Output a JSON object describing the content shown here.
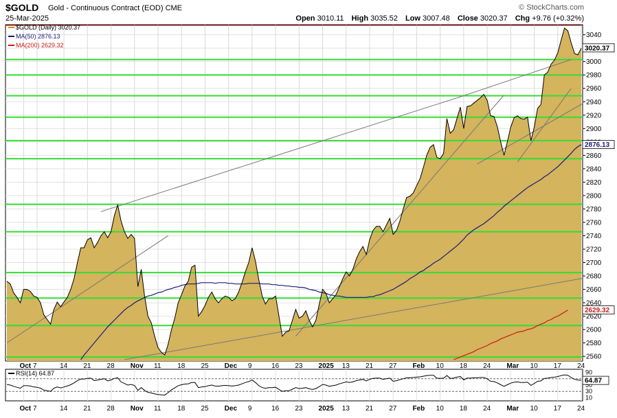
{
  "header": {
    "symbol": "$GOLD",
    "description": "Gold - Continuous Contract (EOD)",
    "exchange": "CME",
    "date": "25-Mar-2025",
    "brand": "© StockCharts.com",
    "open_label": "Open",
    "open": "3010.11",
    "high_label": "High",
    "high": "3035.52",
    "low_label": "Low",
    "low": "3007.48",
    "close_label": "Close",
    "close": "3020.37",
    "chg_label": "Chg",
    "chg": "+9.76 (+0.32%)"
  },
  "legend": {
    "price": "$GOLD (Daily) 3020.37",
    "ma50": "MA(50) 2876.13",
    "ma200": "MA(200) 2629.32",
    "rsi": "RSI(14) 64.87"
  },
  "tags": {
    "price": "3020.37",
    "ma50": "2876.13",
    "ma200": "2629.32",
    "rsi": "64.87"
  },
  "colors": {
    "area_fill": "#d4b45c",
    "price_line": "#000000",
    "ma50": "#1a1a7a",
    "ma200": "#cc1a1a",
    "hlines": "#33dd33",
    "trend": "#777777"
  },
  "chart_data": [
    {
      "type": "area",
      "title": "$GOLD Gold - Continuous Contract (EOD)",
      "ylim": [
        2553,
        3055
      ],
      "yticks": [
        2560,
        2580,
        2600,
        2620,
        2640,
        2660,
        2680,
        2700,
        2720,
        2740,
        2760,
        2780,
        2800,
        2820,
        2840,
        2860,
        2880,
        2900,
        2920,
        2940,
        2960,
        2980,
        3000,
        3020,
        3040
      ],
      "x_ticks": [
        "Oct",
        "7",
        "14",
        "21",
        "28",
        "Nov",
        "11",
        "18",
        "25",
        "Dec",
        "9",
        "16",
        "23",
        "2025",
        "13",
        "21",
        "27",
        "Feb",
        "10",
        "18",
        "24",
        "Mar",
        "10",
        "17",
        "24"
      ],
      "x_tick_idx": [
        5,
        9,
        17,
        24,
        31,
        38,
        45,
        52,
        59,
        66,
        73,
        80,
        87,
        94,
        101,
        108,
        115,
        122,
        129,
        136,
        143,
        150,
        157,
        164,
        171
      ],
      "grid": true,
      "legend_position": "top-left",
      "horizontal_levels": [
        2559,
        2606,
        2647,
        2685,
        2746,
        2787,
        2855,
        2882,
        2917,
        2949,
        2980,
        3003
      ],
      "series": [
        {
          "name": "$GOLD (Daily)",
          "values": [
            2672,
            2668,
            2655,
            2648,
            2640,
            2660,
            2660,
            2657,
            2650,
            2648,
            2640,
            2622,
            2615,
            2608,
            2630,
            2641,
            2634,
            2641,
            2648,
            2660,
            2676,
            2700,
            2722,
            2722,
            2734,
            2737,
            2722,
            2730,
            2740,
            2746,
            2737,
            2746,
            2770,
            2786,
            2762,
            2746,
            2736,
            2742,
            2736,
            2664,
            2690,
            2650,
            2620,
            2610,
            2590,
            2573,
            2566,
            2562,
            2578,
            2600,
            2617,
            2640,
            2652,
            2665,
            2672,
            2693,
            2696,
            2620,
            2627,
            2636,
            2648,
            2656,
            2646,
            2640,
            2646,
            2650,
            2648,
            2643,
            2646,
            2656,
            2670,
            2686,
            2700,
            2722,
            2702,
            2674,
            2650,
            2638,
            2646,
            2646,
            2650,
            2620,
            2590,
            2596,
            2598,
            2614,
            2630,
            2617,
            2620,
            2628,
            2614,
            2604,
            2614,
            2638,
            2660,
            2654,
            2640,
            2646,
            2652,
            2664,
            2676,
            2686,
            2680,
            2690,
            2705,
            2716,
            2724,
            2712,
            2734,
            2748,
            2754,
            2754,
            2746,
            2756,
            2766,
            2742,
            2748,
            2762,
            2780,
            2797,
            2799,
            2804,
            2815,
            2825,
            2842,
            2860,
            2872,
            2876,
            2857,
            2855,
            2863,
            2915,
            2893,
            2898,
            2915,
            2932,
            2900,
            2933,
            2934,
            2938,
            2942,
            2946,
            2951,
            2942,
            2919,
            2918,
            2903,
            2880,
            2860,
            2880,
            2902,
            2916,
            2919,
            2915,
            2914,
            2917,
            2882,
            2902,
            2930,
            2936,
            2980,
            2984,
            2996,
            3002,
            3013,
            3032,
            3050,
            3046,
            3028,
            3012,
            3010,
            3020
          ],
          "color": "#000000"
        },
        {
          "name": "MA(50)",
          "values": [
            null,
            null,
            null,
            null,
            null,
            null,
            null,
            null,
            null,
            null,
            null,
            null,
            null,
            null,
            null,
            null,
            null,
            null,
            null,
            null,
            null,
            null,
            2555,
            2562,
            2568,
            2574,
            2580,
            2586,
            2592,
            2598,
            2604,
            2609,
            2614,
            2619,
            2624,
            2629,
            2633,
            2636,
            2640,
            2643,
            2645,
            2648,
            2650,
            2651,
            2653,
            2655,
            2656,
            2658,
            2660,
            2661,
            2663,
            2664,
            2666,
            2667,
            2668,
            2668,
            2668,
            2669,
            2670,
            2670,
            2670,
            2670,
            2669,
            2670,
            2670,
            2670,
            2669,
            2669,
            2668,
            2668,
            2668,
            2668,
            2669,
            2669,
            2669,
            2669,
            2668,
            2668,
            2668,
            2667,
            2667,
            2666,
            2666,
            2665,
            2665,
            2664,
            2664,
            2663,
            2663,
            2662,
            2660,
            2659,
            2658,
            2656,
            2655,
            2654,
            2652,
            2651,
            2650,
            2650,
            2649,
            2648,
            2648,
            2648,
            2648,
            2648,
            2648,
            2648,
            2649,
            2649,
            2651,
            2652,
            2654,
            2656,
            2658,
            2660,
            2663,
            2666,
            2669,
            2672,
            2676,
            2679,
            2682,
            2686,
            2688,
            2692,
            2695,
            2699,
            2702,
            2705,
            2709,
            2713,
            2717,
            2721,
            2725,
            2730,
            2735,
            2741,
            2745,
            2749,
            2752,
            2755,
            2758,
            2762,
            2766,
            2770,
            2775,
            2779,
            2784,
            2788,
            2792,
            2796,
            2800,
            2804,
            2808,
            2812,
            2815,
            2818,
            2821,
            2824,
            2828,
            2831,
            2835,
            2839,
            2843,
            2848,
            2853,
            2858,
            2863,
            2869,
            2873,
            2876
          ],
          "color": "#1a1a7a"
        },
        {
          "name": "MA(200)",
          "values": [
            null,
            null,
            null,
            null,
            null,
            null,
            null,
            null,
            null,
            null,
            null,
            null,
            null,
            null,
            null,
            null,
            null,
            null,
            null,
            null,
            null,
            null,
            null,
            null,
            null,
            null,
            null,
            null,
            null,
            null,
            null,
            null,
            null,
            null,
            null,
            null,
            null,
            null,
            null,
            null,
            null,
            null,
            null,
            null,
            null,
            null,
            null,
            null,
            null,
            null,
            null,
            null,
            null,
            null,
            null,
            null,
            null,
            null,
            null,
            null,
            null,
            null,
            null,
            null,
            null,
            null,
            null,
            null,
            null,
            null,
            null,
            null,
            null,
            null,
            null,
            null,
            null,
            null,
            null,
            null,
            null,
            null,
            null,
            null,
            null,
            null,
            null,
            null,
            null,
            null,
            null,
            null,
            null,
            null,
            null,
            null,
            null,
            null,
            null,
            null,
            null,
            null,
            null,
            null,
            null,
            null,
            null,
            null,
            null,
            null,
            null,
            null,
            null,
            null,
            null,
            null,
            null,
            null,
            null,
            null,
            null,
            null,
            null,
            null,
            null,
            null,
            null,
            null,
            null,
            null,
            null,
            null,
            null,
            2555,
            2557,
            2559,
            2561,
            2563,
            2565,
            2567,
            2570,
            2572,
            2574,
            2576,
            2579,
            2581,
            2583,
            2586,
            2588,
            2590,
            2592,
            2594,
            2596,
            2597,
            2598,
            2600,
            2601,
            2603,
            2606,
            2608,
            2610,
            2613,
            2615,
            2618,
            2620,
            2623,
            2626,
            2629
          ],
          "color": "#cc1a1a"
        }
      ]
    },
    {
      "type": "line",
      "title": "RSI(14) 64.87",
      "ylim": [
        0,
        100
      ],
      "yticks": [
        10,
        30,
        50,
        70,
        90
      ],
      "grid": true,
      "series": [
        {
          "name": "RSI(14)",
          "values": [
            52,
            50,
            46,
            43,
            40,
            48,
            48,
            47,
            44,
            43,
            40,
            34,
            32,
            30,
            40,
            44,
            41,
            44,
            47,
            51,
            57,
            64,
            69,
            69,
            71,
            72,
            64,
            66,
            68,
            70,
            63,
            66,
            71,
            73,
            60,
            55,
            50,
            52,
            49,
            33,
            42,
            33,
            27,
            25,
            22,
            20,
            19,
            18,
            26,
            35,
            41,
            48,
            51,
            53,
            54,
            58,
            58,
            42,
            44,
            45,
            48,
            50,
            47,
            46,
            48,
            49,
            48,
            47,
            48,
            50,
            54,
            58,
            61,
            66,
            58,
            48,
            42,
            40,
            42,
            42,
            43,
            36,
            30,
            32,
            32,
            37,
            42,
            39,
            40,
            42,
            38,
            36,
            39,
            45,
            52,
            50,
            46,
            48,
            50,
            54,
            57,
            60,
            58,
            60,
            64,
            66,
            68,
            63,
            68,
            71,
            72,
            72,
            68,
            70,
            72,
            62,
            64,
            67,
            70,
            73,
            73,
            74,
            75,
            76,
            78,
            80,
            81,
            81,
            72,
            71,
            72,
            80,
            71,
            72,
            75,
            77,
            66,
            72,
            72,
            73,
            73,
            74,
            74,
            70,
            62,
            61,
            57,
            51,
            46,
            51,
            56,
            59,
            60,
            58,
            58,
            59,
            49,
            55,
            62,
            63,
            71,
            72,
            74,
            75,
            77,
            80,
            82,
            81,
            74,
            68,
            66,
            65
          ],
          "color": "#000000"
        }
      ],
      "reference_lines": [
        30,
        70
      ]
    }
  ]
}
